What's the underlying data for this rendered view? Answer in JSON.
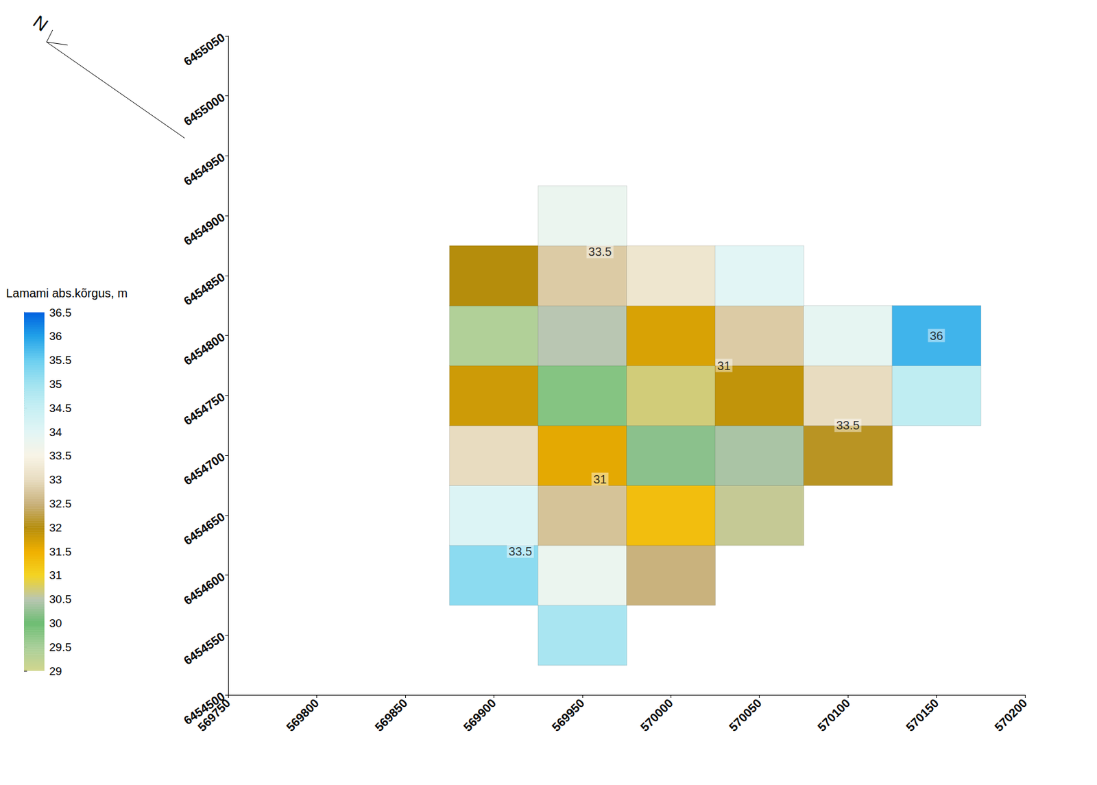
{
  "chart_data": {
    "type": "heatmap",
    "xlim": [
      569750,
      570200
    ],
    "xticks": [
      569750,
      569800,
      569850,
      569900,
      569950,
      570000,
      570050,
      570100,
      570150,
      570200
    ],
    "ylim": [
      6454500,
      6455050
    ],
    "yticks": [
      6454500,
      6454550,
      6454600,
      6454650,
      6454700,
      6454750,
      6454800,
      6454850,
      6454900,
      6454950,
      6455000,
      6455050
    ],
    "grid": false,
    "cells": [
      [
        569950,
        6454550,
        34.9
      ],
      [
        569900,
        6454600,
        35.2
      ],
      [
        569950,
        6454600,
        33.8
      ],
      [
        570000,
        6454600,
        32.5
      ],
      [
        569900,
        6454650,
        34.1
      ],
      [
        569950,
        6454650,
        32.7
      ],
      [
        570000,
        6454650,
        31.3
      ],
      [
        570050,
        6454650,
        30.6
      ],
      [
        569900,
        6454700,
        33.0
      ],
      [
        569950,
        6454700,
        31.6
      ],
      [
        570000,
        6454700,
        30.2
      ],
      [
        570050,
        6454700,
        30.4
      ],
      [
        570100,
        6454700,
        32.1
      ],
      [
        569900,
        6454750,
        31.8
      ],
      [
        569950,
        6454750,
        29.8
      ],
      [
        570000,
        6454750,
        30.7
      ],
      [
        570050,
        6454750,
        31.9
      ],
      [
        570100,
        6454750,
        33.0
      ],
      [
        570150,
        6454750,
        34.6
      ],
      [
        569900,
        6454800,
        29.4
      ],
      [
        569950,
        6454800,
        30.5
      ],
      [
        570000,
        6454800,
        31.7
      ],
      [
        570050,
        6454800,
        32.8
      ],
      [
        570100,
        6454800,
        33.9
      ],
      [
        570150,
        6454800,
        35.8
      ],
      [
        569900,
        6454850,
        32.0
      ],
      [
        569950,
        6454850,
        32.8
      ],
      [
        570000,
        6454850,
        33.2
      ],
      [
        570050,
        6454850,
        34.0
      ],
      [
        569950,
        6454900,
        33.8
      ]
    ],
    "annotations": [
      {
        "text": "36",
        "x": 570150,
        "y": 6454800
      },
      {
        "text": "33.5",
        "x": 570100,
        "y": 6454725
      },
      {
        "text": "33.5",
        "x": 569960,
        "y": 6454870
      },
      {
        "text": "31",
        "x": 570030,
        "y": 6454775
      },
      {
        "text": "31",
        "x": 569960,
        "y": 6454680
      },
      {
        "text": "33.5",
        "x": 569915,
        "y": 6454620
      }
    ],
    "colorbar": {
      "title": "Lamami abs.kõrgus, m",
      "range": [
        29,
        36.5
      ],
      "ticks": [
        29,
        29.5,
        30,
        30.5,
        31,
        31.5,
        32,
        32.5,
        33,
        33.5,
        34,
        34.5,
        35,
        35.5,
        36,
        36.5
      ]
    },
    "north_label": "N"
  }
}
